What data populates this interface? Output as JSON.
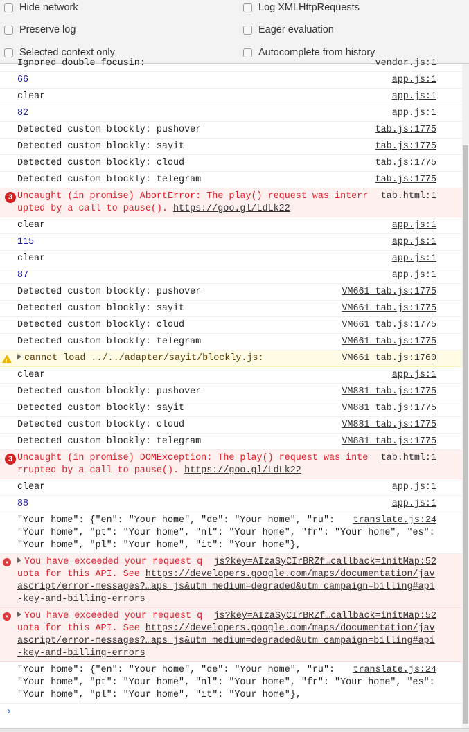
{
  "settings": {
    "left": [
      "Hide network",
      "Preserve log",
      "Selected context only"
    ],
    "right": [
      "Log XMLHttpRequests",
      "Eager evaluation",
      "Autocomplete from history"
    ]
  },
  "colors": {
    "error_bg": "#fff0f0",
    "error_text": "#e0202a",
    "warning_bg": "#fffbe5",
    "number": "#1a1aa6",
    "prompt": "#367cf1"
  },
  "console": {
    "prompt_icon": "chevron-right-icon",
    "rows": [
      {
        "type": "log",
        "message": "Ignored double focusin:",
        "source": "vendor.js:1"
      },
      {
        "type": "num",
        "message": "66",
        "source": "app.js:1"
      },
      {
        "type": "log",
        "message": "clear",
        "source": "app.js:1"
      },
      {
        "type": "num",
        "message": "82",
        "source": "app.js:1"
      },
      {
        "type": "log",
        "message": "Detected custom blockly: pushover",
        "source": "tab.js:1775"
      },
      {
        "type": "log",
        "message": "Detected custom blockly: sayit",
        "source": "tab.js:1775"
      },
      {
        "type": "log",
        "message": "Detected custom blockly: cloud",
        "source": "tab.js:1775"
      },
      {
        "type": "log",
        "message": "Detected custom blockly: telegram",
        "source": "tab.js:1775"
      },
      {
        "type": "error",
        "badge": "3",
        "message": "Uncaught (in promise) AbortError: The play() request was interrupted by a call to pause(). ",
        "url": "https://goo.gl/LdLk22",
        "source": "tab.html:1"
      },
      {
        "type": "log",
        "message": "clear",
        "source": "app.js:1"
      },
      {
        "type": "num",
        "message": "115",
        "source": "app.js:1"
      },
      {
        "type": "log",
        "message": "clear",
        "source": "app.js:1"
      },
      {
        "type": "num",
        "message": "87",
        "source": "app.js:1"
      },
      {
        "type": "log",
        "message": "Detected custom blockly: pushover",
        "source": "VM661 tab.js:1775"
      },
      {
        "type": "log",
        "message": "Detected custom blockly: sayit",
        "source": "VM661 tab.js:1775"
      },
      {
        "type": "log",
        "message": "Detected custom blockly: cloud",
        "source": "VM661 tab.js:1775"
      },
      {
        "type": "log",
        "message": "Detected custom blockly: telegram",
        "source": "VM661 tab.js:1775"
      },
      {
        "type": "warning",
        "expand": true,
        "message": "cannot load ../../adapter/sayit/blockly.js:",
        "source": "VM661 tab.js:1760"
      },
      {
        "type": "log",
        "message": "clear",
        "source": "app.js:1"
      },
      {
        "type": "log",
        "message": "Detected custom blockly: pushover",
        "source": "VM881 tab.js:1775"
      },
      {
        "type": "log",
        "message": "Detected custom blockly: sayit",
        "source": "VM881 tab.js:1775"
      },
      {
        "type": "log",
        "message": "Detected custom blockly: cloud",
        "source": "VM881 tab.js:1775"
      },
      {
        "type": "log",
        "message": "Detected custom blockly: telegram",
        "source": "VM881 tab.js:1775"
      },
      {
        "type": "error",
        "badge": "3",
        "message": "Uncaught (in promise) DOMException: The play() request was interrupted by a call to pause(). ",
        "url": "https://goo.gl/LdLk22",
        "source": "tab.html:1"
      },
      {
        "type": "log",
        "message": "clear",
        "source": "app.js:1"
      },
      {
        "type": "num",
        "message": "88",
        "source": "app.js:1"
      },
      {
        "type": "log",
        "message": "\"Your home\": {\"en\": \"Your home\", \"de\": \"Your home\", \"ru\": \"Your home\", \"pt\": \"Your home\", \"nl\": \"Your home\", \"fr\": \"Your home\", \"es\": \"Your home\", \"pl\": \"Your home\", \"it\": \"Your home\"},",
        "source": "translate.js:24"
      },
      {
        "type": "error",
        "icon": "x",
        "expand": true,
        "message": "You have exceeded your request quota for this API. See ",
        "url": "https://developers.google.com/maps/documentation/javascript/error-messages?…aps_js&utm_medium=degraded&utm_campaign=billing#api-key-and-billing-errors",
        "source": "js?key=AIzaSyCIrBRZf…callback=initMap:52"
      },
      {
        "type": "error",
        "icon": "x",
        "expand": true,
        "message": "You have exceeded your request quota for this API. See ",
        "url": "https://developers.google.com/maps/documentation/javascript/error-messages?…aps_js&utm_medium=degraded&utm_campaign=billing#api-key-and-billing-errors",
        "source": "js?key=AIzaSyCIrBRZf…callback=initMap:52"
      },
      {
        "type": "log",
        "message": "\"Your home\": {\"en\": \"Your home\", \"de\": \"Your home\", \"ru\": \"Your home\", \"pt\": \"Your home\", \"nl\": \"Your home\", \"fr\": \"Your home\", \"es\": \"Your home\", \"pl\": \"Your home\", \"it\": \"Your home\"},",
        "source": "translate.js:24"
      }
    ]
  }
}
